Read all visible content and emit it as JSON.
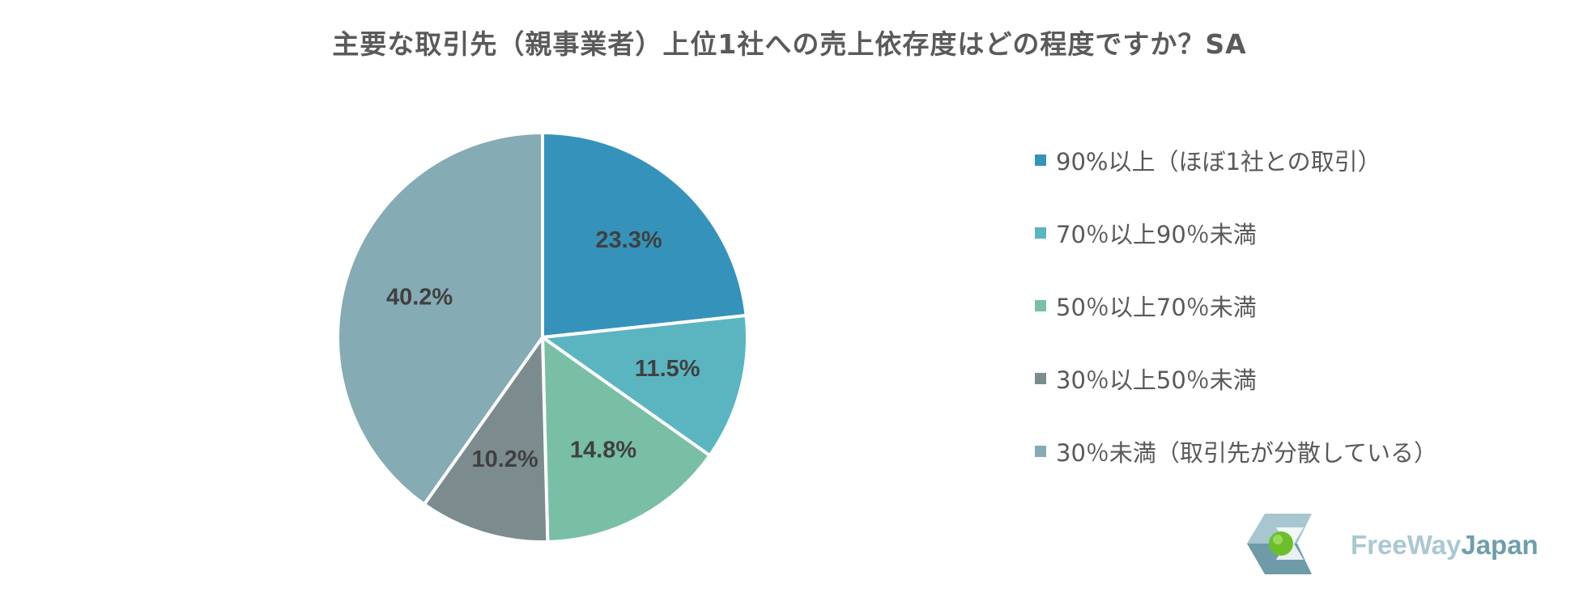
{
  "chart_data": {
    "type": "pie",
    "title": "主要な取引先（親事業者）上位1社への売上依存度はどの程度ですか？SA",
    "categories": [
      "90%以上（ほぼ1社との取引）",
      "70％以上90％未満",
      "50％以上70％未満",
      "30％以上50％未満",
      "30％未満（取引先が分散している）"
    ],
    "values": [
      23.3,
      11.5,
      14.8,
      10.2,
      40.2
    ],
    "data_labels": [
      "23.3%",
      "11.5%",
      "14.8%",
      "10.2%",
      "40.2%"
    ],
    "colors": [
      "#3593bb",
      "#5bb5c1",
      "#78bfa6",
      "#7c8c8e",
      "#85abb5"
    ],
    "legend_position": "right"
  },
  "logo": {
    "text_part1": "FreeWay",
    "text_part2": "Japan",
    "color_part1": "#a9c9d2",
    "color_part2": "#6e9eab"
  }
}
